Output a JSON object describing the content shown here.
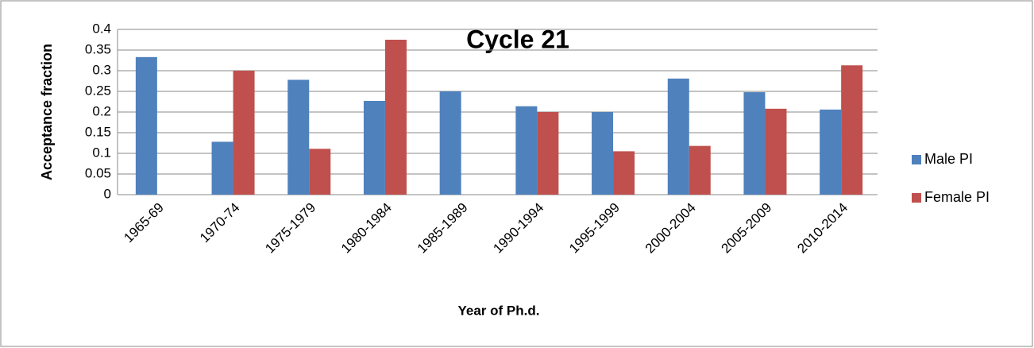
{
  "chart_data": {
    "type": "bar",
    "title": "Cycle 21",
    "x_label": "Year of Ph.d.",
    "y_label": "Acceptance fraction",
    "categories": [
      "1965-69",
      "1970-74",
      "1975-1979",
      "1980-1984",
      "1985-1989",
      "1990-1994",
      "1995-1999",
      "2000-2004",
      "2005-2009",
      "2010-2014"
    ],
    "series": [
      {
        "name": "Male PI",
        "color": "#4f81bd",
        "values": [
          0.333,
          0.128,
          0.278,
          0.227,
          0.25,
          0.214,
          0.2,
          0.281,
          0.248,
          0.206
        ]
      },
      {
        "name": "Female PI",
        "color": "#c0504d",
        "values": [
          0,
          0.3,
          0.111,
          0.375,
          0,
          0.2,
          0.105,
          0.118,
          0.208,
          0.313
        ]
      }
    ],
    "ylim": [
      0,
      0.4
    ],
    "yticks": [
      0,
      0.05,
      0.1,
      0.15,
      0.2,
      0.25,
      0.3,
      0.35,
      0.4
    ],
    "grid": true,
    "legend": "right"
  }
}
